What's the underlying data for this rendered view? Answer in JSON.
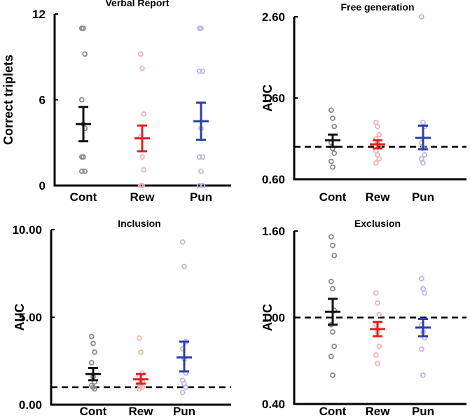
{
  "colors": {
    "cont_point": "#8a8a8a",
    "rew_point": "#f4b3b3",
    "pun_point": "#b9b9e6",
    "cont_bar": "#111111",
    "rew_bar": "#e02020",
    "pun_bar": "#2a3ea8"
  },
  "chart_data": [
    {
      "type": "scatter",
      "title": "Verbal Report",
      "ylabel": "Correct triplets",
      "ylim": [
        0,
        12
      ],
      "yticks": [
        "0",
        "6",
        "12"
      ],
      "tick_values": [
        0,
        6,
        12
      ],
      "categories": [
        "Cont",
        "Rew",
        "Pun"
      ],
      "chance_line": null,
      "series": [
        {
          "name": "Cont",
          "mean": 4.3,
          "sem_low": 3.1,
          "sem_high": 5.5,
          "points": [
            11,
            11,
            9.2,
            6,
            4.3,
            4,
            2,
            2,
            1,
            1
          ]
        },
        {
          "name": "Rew",
          "mean": 3.3,
          "sem_low": 2.4,
          "sem_high": 4.2,
          "points": [
            9.2,
            8.2,
            5,
            3.4,
            2,
            1.1,
            0,
            0
          ]
        },
        {
          "name": "Pun",
          "mean": 4.5,
          "sem_low": 3.2,
          "sem_high": 5.8,
          "points": [
            11,
            11,
            8,
            8,
            4,
            2,
            2,
            1,
            0,
            0
          ]
        }
      ]
    },
    {
      "type": "scatter",
      "title": "Free generation",
      "ylabel": "AUC",
      "ylim": [
        0.6,
        2.6
      ],
      "yticks": [
        "0.60",
        "1.60",
        "2.60"
      ],
      "tick_values": [
        0.6,
        1.6,
        2.6
      ],
      "categories": [
        "Cont",
        "Rew",
        "Pun"
      ],
      "chance_line": 1.0,
      "series": [
        {
          "name": "Cont",
          "mean": 1.08,
          "sem_low": 1.0,
          "sem_high": 1.15,
          "points": [
            1.45,
            1.35,
            1.25,
            1.05,
            0.98,
            0.92,
            0.82,
            0.75
          ]
        },
        {
          "name": "Rew",
          "mean": 1.03,
          "sem_low": 0.98,
          "sem_high": 1.08,
          "points": [
            1.3,
            1.25,
            1.15,
            1.1,
            1.05,
            1.0,
            0.95,
            0.9,
            0.85,
            0.8
          ]
        },
        {
          "name": "Pun",
          "mean": 1.11,
          "sem_low": 0.97,
          "sem_high": 1.26,
          "points": [
            2.6,
            1.3,
            1.25,
            1.05,
            0.98,
            0.9,
            0.85,
            0.8
          ]
        }
      ]
    },
    {
      "type": "scatter",
      "title": "Inclusion",
      "ylabel": "AUC",
      "ylim": [
        0,
        10
      ],
      "yticks": [
        "0.00",
        "5.00",
        "10.00"
      ],
      "tick_values": [
        0,
        5,
        10
      ],
      "categories": [
        "Cont",
        "Rew",
        "Pun"
      ],
      "chance_line": 1.0,
      "series": [
        {
          "name": "Cont",
          "mean": 1.75,
          "sem_low": 1.4,
          "sem_high": 2.1,
          "points": [
            3.9,
            3.5,
            3.0,
            2.4,
            1.6,
            1.3,
            1.1,
            1.0,
            0.9
          ]
        },
        {
          "name": "Rew",
          "mean": 1.45,
          "sem_low": 1.2,
          "sem_high": 1.75,
          "points": [
            3.8,
            3.0,
            1.8,
            1.6,
            1.4,
            1.3,
            1.2,
            1.1,
            1.0,
            0.9
          ]
        },
        {
          "name": "Pun",
          "mean": 2.7,
          "sem_low": 1.9,
          "sem_high": 3.6,
          "points": [
            9.3,
            7.9,
            3.6,
            3.2,
            2.6,
            1.8,
            1.4,
            1.2,
            1.0,
            0.7
          ]
        }
      ]
    },
    {
      "type": "scatter",
      "title": "Exclusion",
      "ylabel": "AUC",
      "ylim": [
        0.4,
        1.6
      ],
      "yticks": [
        "0.40",
        "1.00",
        "1.60"
      ],
      "tick_values": [
        0.4,
        1.0,
        1.6
      ],
      "categories": [
        "Cont",
        "Rew",
        "Pun"
      ],
      "chance_line": 1.0,
      "series": [
        {
          "name": "Cont",
          "mean": 1.04,
          "sem_low": 0.95,
          "sem_high": 1.13,
          "points": [
            1.56,
            1.5,
            1.43,
            1.25,
            1.2,
            1.05,
            0.95,
            0.9,
            0.8,
            0.73,
            0.6
          ]
        },
        {
          "name": "Rew",
          "mean": 0.92,
          "sem_low": 0.87,
          "sem_high": 0.97,
          "points": [
            1.17,
            1.1,
            1.02,
            0.95,
            0.9,
            0.8,
            0.74,
            0.68
          ]
        },
        {
          "name": "Pun",
          "mean": 0.93,
          "sem_low": 0.87,
          "sem_high": 0.99,
          "points": [
            1.27,
            1.2,
            1.17,
            0.95,
            0.9,
            0.86,
            0.78,
            0.6
          ]
        }
      ]
    }
  ]
}
